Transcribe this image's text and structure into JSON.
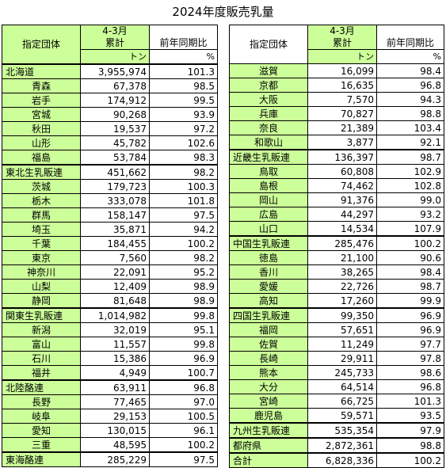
{
  "title": "2024年度販売乳量",
  "header": {
    "name": "指定団体",
    "period": "4-3月",
    "cumulative": "累計",
    "yoy": "前年同期比",
    "unit_volume": "トン",
    "unit_pct": "%"
  },
  "left_rows": [
    {
      "name": "北海道",
      "vol": "3,955,974",
      "pct": "101.3",
      "region": true
    },
    {
      "name": "青森",
      "vol": "67,378",
      "pct": "98.5"
    },
    {
      "name": "岩手",
      "vol": "174,912",
      "pct": "99.5"
    },
    {
      "name": "宮城",
      "vol": "90,268",
      "pct": "93.9"
    },
    {
      "name": "秋田",
      "vol": "19,537",
      "pct": "97.2"
    },
    {
      "name": "山形",
      "vol": "45,782",
      "pct": "102.6"
    },
    {
      "name": "福島",
      "vol": "53,784",
      "pct": "98.3"
    },
    {
      "name": "東北生乳販連",
      "vol": "451,662",
      "pct": "98.2",
      "region": true
    },
    {
      "name": "茨城",
      "vol": "179,723",
      "pct": "100.3"
    },
    {
      "name": "栃木",
      "vol": "333,078",
      "pct": "101.8"
    },
    {
      "name": "群馬",
      "vol": "158,147",
      "pct": "97.5"
    },
    {
      "name": "埼玉",
      "vol": "35,871",
      "pct": "94.2"
    },
    {
      "name": "千葉",
      "vol": "184,455",
      "pct": "100.2"
    },
    {
      "name": "東京",
      "vol": "7,560",
      "pct": "98.2"
    },
    {
      "name": "神奈川",
      "vol": "22,091",
      "pct": "95.2"
    },
    {
      "name": "山梨",
      "vol": "12,409",
      "pct": "98.9"
    },
    {
      "name": "静岡",
      "vol": "81,648",
      "pct": "98.9"
    },
    {
      "name": "関東生乳販連",
      "vol": "1,014,982",
      "pct": "99.8",
      "region": true
    },
    {
      "name": "新潟",
      "vol": "32,019",
      "pct": "95.1"
    },
    {
      "name": "富山",
      "vol": "11,557",
      "pct": "99.8"
    },
    {
      "name": "石川",
      "vol": "15,386",
      "pct": "96.9"
    },
    {
      "name": "福井",
      "vol": "4,949",
      "pct": "100.7"
    },
    {
      "name": "北陸酪連",
      "vol": "63,911",
      "pct": "96.8",
      "region": true
    },
    {
      "name": "長野",
      "vol": "77,465",
      "pct": "97.0"
    },
    {
      "name": "岐阜",
      "vol": "29,153",
      "pct": "100.5"
    },
    {
      "name": "愛知",
      "vol": "130,015",
      "pct": "96.1"
    },
    {
      "name": "三重",
      "vol": "48,595",
      "pct": "100.2"
    },
    {
      "name": "東海酪連",
      "vol": "285,229",
      "pct": "97.5",
      "region": true
    }
  ],
  "right_rows": [
    {
      "name": "滋賀",
      "vol": "16,099",
      "pct": "98.4"
    },
    {
      "name": "京都",
      "vol": "16,635",
      "pct": "96.8"
    },
    {
      "name": "大阪",
      "vol": "7,570",
      "pct": "94.3"
    },
    {
      "name": "兵庫",
      "vol": "70,827",
      "pct": "98.8"
    },
    {
      "name": "奈良",
      "vol": "21,389",
      "pct": "103.4"
    },
    {
      "name": "和歌山",
      "vol": "3,877",
      "pct": "92.1"
    },
    {
      "name": "近畿生乳販連",
      "vol": "136,397",
      "pct": "98.7",
      "region": true
    },
    {
      "name": "鳥取",
      "vol": "60,808",
      "pct": "102.9"
    },
    {
      "name": "島根",
      "vol": "74,462",
      "pct": "102.8"
    },
    {
      "name": "岡山",
      "vol": "91,376",
      "pct": "99.0"
    },
    {
      "name": "広島",
      "vol": "44,297",
      "pct": "93.2"
    },
    {
      "name": "山口",
      "vol": "14,534",
      "pct": "107.9"
    },
    {
      "name": "中国生乳販連",
      "vol": "285,476",
      "pct": "100.2",
      "region": true
    },
    {
      "name": "徳島",
      "vol": "21,100",
      "pct": "90.6"
    },
    {
      "name": "香川",
      "vol": "38,265",
      "pct": "98.4"
    },
    {
      "name": "愛媛",
      "vol": "22,726",
      "pct": "98.7"
    },
    {
      "name": "高知",
      "vol": "17,260",
      "pct": "99.9"
    },
    {
      "name": "四国生乳販連",
      "vol": "99,350",
      "pct": "96.9",
      "region": true
    },
    {
      "name": "福岡",
      "vol": "57,651",
      "pct": "96.9"
    },
    {
      "name": "佐賀",
      "vol": "11,249",
      "pct": "97.7"
    },
    {
      "name": "長崎",
      "vol": "29,911",
      "pct": "97.8"
    },
    {
      "name": "熊本",
      "vol": "245,733",
      "pct": "98.6"
    },
    {
      "name": "大分",
      "vol": "64,514",
      "pct": "96.8"
    },
    {
      "name": "宮崎",
      "vol": "66,725",
      "pct": "101.3"
    },
    {
      "name": "鹿児島",
      "vol": "59,571",
      "pct": "93.5"
    },
    {
      "name": "九州生乳販連",
      "vol": "535,354",
      "pct": "97.9",
      "region": true
    },
    {
      "name": "都府県",
      "vol": "2,872,361",
      "pct": "98.8",
      "region": true
    },
    {
      "name": "合計",
      "vol": "6,828,336",
      "pct": "100.2",
      "region": true
    }
  ]
}
